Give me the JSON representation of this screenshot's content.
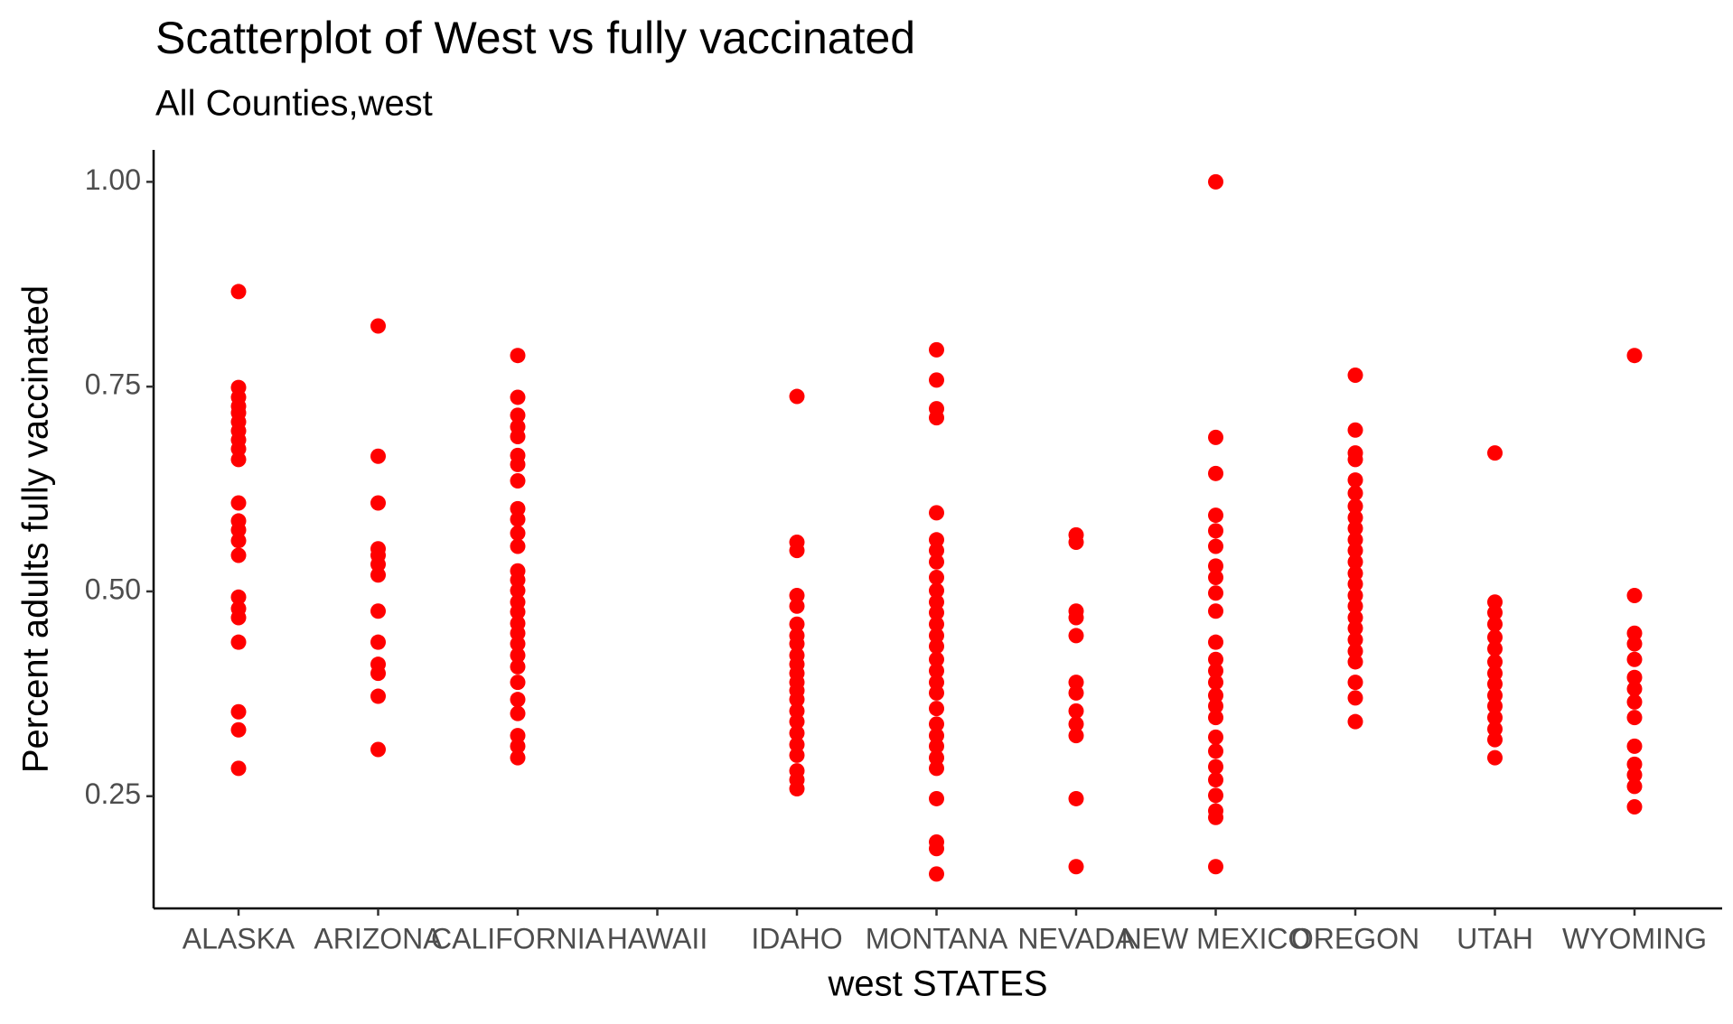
{
  "chart_data": {
    "type": "scatter",
    "title": "Scatterplot of West vs  fully vaccinated",
    "subtitle": "All Counties,west",
    "x_label": "west STATES",
    "y_label": "Percent adults fully vaccinated",
    "color": "#ff0000",
    "grid": false,
    "ylim": [
      0.113,
      1.039
    ],
    "yticks": [
      {
        "value": 0.25,
        "label": "0.25"
      },
      {
        "value": 0.5,
        "label": "0.50"
      },
      {
        "value": 0.75,
        "label": "0.75"
      },
      {
        "value": 1,
        "label": "1.00"
      }
    ],
    "categories": [
      "ALASKA",
      "ARIZONA",
      "CALIFORNIA",
      "HAWAII",
      "IDAHO",
      "MONTANA",
      "NEVADA",
      "NEW MEXICO",
      "OREGON",
      "UTAH",
      "WYOMING"
    ],
    "values": [
      [
        0.866,
        0.749,
        0.737,
        0.726,
        0.718,
        0.707,
        0.696,
        0.685,
        0.674,
        0.661,
        0.608,
        0.586,
        0.575,
        0.562,
        0.544,
        0.493,
        0.479,
        0.468,
        0.438,
        0.353,
        0.331,
        0.284
      ],
      [
        0.824,
        0.665,
        0.608,
        0.552,
        0.544,
        0.533,
        0.52,
        0.476,
        0.438,
        0.411,
        0.4,
        0.372,
        0.307
      ],
      [
        0.788,
        0.737,
        0.715,
        0.701,
        0.689,
        0.666,
        0.655,
        0.635,
        0.601,
        0.588,
        0.571,
        0.555,
        0.525,
        0.514,
        0.501,
        0.487,
        0.475,
        0.461,
        0.449,
        0.436,
        0.422,
        0.408,
        0.389,
        0.368,
        0.351,
        0.324,
        0.311,
        0.297
      ],
      [],
      [
        0.738,
        0.56,
        0.55,
        0.495,
        0.482,
        0.46,
        0.446,
        0.436,
        0.422,
        0.411,
        0.4,
        0.389,
        0.379,
        0.368,
        0.354,
        0.341,
        0.327,
        0.313,
        0.3,
        0.281,
        0.27,
        0.259
      ],
      [
        0.795,
        0.758,
        0.723,
        0.712,
        0.596,
        0.563,
        0.55,
        0.536,
        0.517,
        0.501,
        0.487,
        0.474,
        0.46,
        0.446,
        0.433,
        0.417,
        0.403,
        0.389,
        0.376,
        0.357,
        0.338,
        0.324,
        0.311,
        0.297,
        0.284,
        0.247,
        0.194,
        0.186,
        0.155
      ],
      [
        0.569,
        0.56,
        0.476,
        0.468,
        0.446,
        0.389,
        0.376,
        0.354,
        0.338,
        0.324,
        0.247,
        0.164
      ],
      [
        1,
        0.688,
        0.644,
        0.593,
        0.574,
        0.555,
        0.531,
        0.517,
        0.498,
        0.476,
        0.438,
        0.417,
        0.403,
        0.389,
        0.373,
        0.36,
        0.346,
        0.322,
        0.305,
        0.286,
        0.27,
        0.251,
        0.232,
        0.224,
        0.164
      ],
      [
        0.764,
        0.697,
        0.669,
        0.661,
        0.636,
        0.62,
        0.604,
        0.59,
        0.577,
        0.563,
        0.55,
        0.536,
        0.522,
        0.509,
        0.495,
        0.482,
        0.468,
        0.455,
        0.441,
        0.427,
        0.414,
        0.389,
        0.37,
        0.341
      ],
      [
        0.669,
        0.487,
        0.474,
        0.46,
        0.444,
        0.43,
        0.414,
        0.4,
        0.387,
        0.373,
        0.36,
        0.346,
        0.332,
        0.319,
        0.297
      ],
      [
        0.788,
        0.495,
        0.449,
        0.436,
        0.417,
        0.395,
        0.381,
        0.365,
        0.346,
        0.311,
        0.289,
        0.276,
        0.262,
        0.237
      ]
    ]
  }
}
